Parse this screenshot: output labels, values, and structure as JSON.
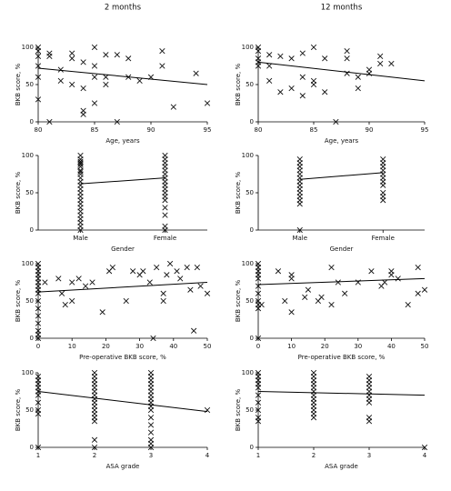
{
  "chart_data": [
    {
      "type": "scatter",
      "title": "2 months",
      "xlabel": "Age, years",
      "ylabel": "BKB score, %",
      "xlim": [
        80,
        95
      ],
      "xticks": [
        80,
        85,
        90,
        95
      ],
      "ylim": [
        0,
        100
      ],
      "yticks": [
        0,
        50,
        100
      ],
      "x": [
        80,
        80,
        80,
        80,
        80,
        80,
        81,
        81,
        81,
        82,
        82,
        83,
        83,
        83,
        84,
        84,
        84,
        84,
        85,
        85,
        85,
        85,
        86,
        86,
        86,
        87,
        87,
        88,
        88,
        89,
        90,
        91,
        91,
        92,
        94,
        95
      ],
      "y": [
        100,
        95,
        88,
        75,
        60,
        30,
        0,
        88,
        92,
        70,
        55,
        85,
        92,
        50,
        45,
        15,
        10,
        80,
        100,
        60,
        25,
        75,
        90,
        50,
        60,
        90,
        0,
        85,
        60,
        55,
        60,
        95,
        75,
        20,
        65,
        25
      ],
      "trend": {
        "x": [
          80,
          95
        ],
        "y": [
          72,
          50
        ]
      }
    },
    {
      "type": "scatter",
      "title": "12 months",
      "xlabel": "Age, years",
      "ylabel": "BKB score, %",
      "xlim": [
        80,
        95
      ],
      "xticks": [
        80,
        85,
        90,
        95
      ],
      "ylim": [
        0,
        100
      ],
      "yticks": [
        0,
        50,
        100
      ],
      "x": [
        80,
        80,
        80,
        80,
        80,
        81,
        81,
        81,
        82,
        82,
        83,
        83,
        84,
        84,
        84,
        85,
        85,
        85,
        86,
        86,
        87,
        88,
        88,
        88,
        89,
        89,
        90,
        90,
        91,
        91,
        92
      ],
      "y": [
        100,
        95,
        85,
        75,
        80,
        90,
        75,
        55,
        40,
        88,
        45,
        85,
        35,
        60,
        92,
        100,
        55,
        50,
        85,
        40,
        0,
        95,
        65,
        85,
        45,
        60,
        65,
        70,
        88,
        78,
        78
      ],
      "trend": {
        "x": [
          80,
          95
        ],
        "y": [
          80,
          55
        ]
      }
    },
    {
      "type": "strip",
      "xlabel": "Gender",
      "ylabel": "BKB score, %",
      "categories": [
        "Male",
        "Female"
      ],
      "ylim": [
        0,
        100
      ],
      "yticks": [
        0,
        50,
        100
      ],
      "values": [
        [
          100,
          95,
          92,
          90,
          88,
          85,
          80,
          78,
          75,
          70,
          65,
          60,
          55,
          50,
          45,
          40,
          35,
          30,
          25,
          20,
          15,
          10,
          5,
          0
        ],
        [
          100,
          95,
          90,
          85,
          80,
          75,
          70,
          65,
          60,
          55,
          50,
          45,
          40,
          30,
          20,
          5,
          0
        ]
      ],
      "trend": {
        "y": [
          62,
          70
        ]
      }
    },
    {
      "type": "strip",
      "xlabel": "Gender",
      "ylabel": "BKB score, %",
      "categories": [
        "Male",
        "Female"
      ],
      "ylim": [
        0,
        100
      ],
      "yticks": [
        0,
        50,
        100
      ],
      "values": [
        [
          95,
          90,
          85,
          80,
          75,
          70,
          65,
          60,
          55,
          50,
          45,
          40,
          35,
          0
        ],
        [
          95,
          90,
          85,
          80,
          75,
          70,
          65,
          60,
          50,
          45,
          40
        ]
      ],
      "trend": {
        "y": [
          68,
          77
        ]
      }
    },
    {
      "type": "scatter",
      "xlabel": "Pre-operative BKB score, %",
      "ylabel": "BKB score, %",
      "xlim": [
        0,
        50
      ],
      "xticks": [
        0,
        10,
        20,
        30,
        40,
        50
      ],
      "ylim": [
        0,
        100
      ],
      "yticks": [
        0,
        50,
        100
      ],
      "x": [
        0,
        0,
        0,
        0,
        0,
        0,
        0,
        0,
        0,
        0,
        0,
        0,
        0,
        0,
        0,
        0,
        2,
        6,
        7,
        8,
        10,
        10,
        12,
        14,
        16,
        19,
        21,
        22,
        26,
        28,
        30,
        31,
        33,
        34,
        35,
        37,
        37,
        38,
        39,
        41,
        42,
        44,
        45,
        46,
        47,
        48,
        50
      ],
      "y": [
        100,
        95,
        90,
        85,
        80,
        75,
        70,
        65,
        60,
        50,
        40,
        30,
        20,
        10,
        5,
        0,
        75,
        80,
        60,
        45,
        75,
        50,
        80,
        70,
        75,
        35,
        90,
        95,
        50,
        90,
        85,
        90,
        75,
        0,
        95,
        60,
        50,
        85,
        100,
        90,
        80,
        95,
        65,
        10,
        95,
        70,
        60
      ],
      "trend": {
        "x": [
          0,
          50
        ],
        "y": [
          62,
          75
        ]
      }
    },
    {
      "type": "scatter",
      "xlabel": "Pre-operative BKB score, %",
      "ylabel": "BKB score, %",
      "xlim": [
        0,
        50
      ],
      "xticks": [
        0,
        10,
        20,
        30,
        40,
        50
      ],
      "ylim": [
        0,
        100
      ],
      "yticks": [
        0,
        50,
        100
      ],
      "x": [
        0,
        0,
        0,
        0,
        0,
        0,
        0,
        0,
        0,
        0,
        0,
        1,
        6,
        8,
        10,
        10,
        10,
        14,
        15,
        18,
        19,
        22,
        22,
        24,
        26,
        30,
        34,
        37,
        38,
        40,
        40,
        42,
        45,
        48,
        48,
        50
      ],
      "y": [
        100,
        95,
        90,
        85,
        80,
        70,
        60,
        50,
        45,
        40,
        0,
        45,
        90,
        50,
        35,
        80,
        85,
        55,
        65,
        50,
        55,
        45,
        95,
        75,
        60,
        75,
        90,
        70,
        75,
        90,
        85,
        80,
        45,
        95,
        60,
        65
      ],
      "trend": {
        "x": [
          0,
          50
        ],
        "y": [
          72,
          80
        ]
      }
    },
    {
      "type": "scatter",
      "xlabel": "ASA grade",
      "ylabel": "BKB score, %",
      "xlim": [
        1,
        4
      ],
      "xticks": [
        1,
        2,
        3,
        4
      ],
      "ylim": [
        0,
        100
      ],
      "yticks": [
        0,
        50,
        100
      ],
      "x": [
        1,
        1,
        1,
        1,
        1,
        1,
        1,
        1,
        1,
        1,
        2,
        2,
        2,
        2,
        2,
        2,
        2,
        2,
        2,
        2,
        2,
        2,
        2,
        2,
        2,
        2,
        3,
        3,
        3,
        3,
        3,
        3,
        3,
        3,
        3,
        3,
        3,
        3,
        3,
        3,
        3,
        3,
        3,
        4
      ],
      "y": [
        95,
        90,
        85,
        80,
        75,
        70,
        60,
        50,
        45,
        0,
        100,
        95,
        90,
        85,
        80,
        75,
        70,
        65,
        60,
        55,
        50,
        45,
        40,
        35,
        10,
        0,
        100,
        95,
        90,
        85,
        80,
        75,
        70,
        65,
        60,
        55,
        50,
        40,
        30,
        20,
        10,
        5,
        0,
        50
      ],
      "trend": {
        "x": [
          1,
          4
        ],
        "y": [
          75,
          48
        ]
      }
    },
    {
      "type": "scatter",
      "xlabel": "ASA grade",
      "ylabel": "BKB score, %",
      "xlim": [
        1,
        4
      ],
      "xticks": [
        1,
        2,
        3,
        4
      ],
      "ylim": [
        0,
        100
      ],
      "yticks": [
        0,
        50,
        100
      ],
      "x": [
        1,
        1,
        1,
        1,
        1,
        1,
        1,
        1,
        1,
        1,
        2,
        2,
        2,
        2,
        2,
        2,
        2,
        2,
        2,
        2,
        2,
        2,
        2,
        3,
        3,
        3,
        3,
        3,
        3,
        3,
        3,
        3,
        3,
        4
      ],
      "y": [
        100,
        95,
        90,
        85,
        80,
        70,
        60,
        50,
        40,
        35,
        100,
        95,
        90,
        85,
        80,
        75,
        70,
        65,
        60,
        55,
        50,
        45,
        40,
        95,
        90,
        85,
        80,
        75,
        70,
        65,
        60,
        40,
        35,
        0
      ],
      "trend": {
        "x": [
          1,
          4
        ],
        "y": [
          75,
          70
        ]
      }
    }
  ]
}
